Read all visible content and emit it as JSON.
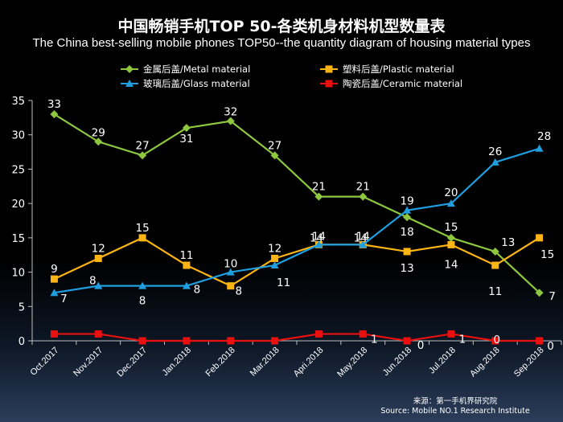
{
  "header": {
    "title": "中国畅销手机TOP 50-各类机身材料机型数量表",
    "subtitle": "The China best-selling mobile phones TOP50--the quantity diagram of housing material types"
  },
  "source": {
    "line1": "来源：第一手机界研究院",
    "line2": "Source: Mobile NO.1 Research Institute"
  },
  "chart_data": {
    "type": "line",
    "title": "中国畅销手机TOP 50-各类机身材料机型数量表",
    "subtitle": "The China best-selling mobile phones TOP50--the quantity diagram of housing material types",
    "categories": [
      "Oct.2017",
      "Nov.2017",
      "Dec.2017",
      "Jan.2018",
      "Feb.2018",
      "Mar.2018",
      "Apri.2018",
      "May.2018",
      "Jun.2018",
      "Jul.2018",
      "Aug.2018",
      "Sep.2018"
    ],
    "ylim": [
      0,
      35
    ],
    "yticks": [
      0,
      5,
      10,
      15,
      20,
      25,
      30,
      35
    ],
    "grid": false,
    "legend_position": "top",
    "series": [
      {
        "name": "金属后盖/Metal material",
        "color": "#8dc63f",
        "marker": "diamond",
        "values": [
          33,
          29,
          27,
          31,
          32,
          27,
          21,
          21,
          18,
          15,
          13,
          7
        ],
        "labels": [
          "33",
          "29",
          "27",
          "31",
          "32",
          "27",
          "21",
          "21",
          "18",
          "15",
          "13",
          "7"
        ]
      },
      {
        "name": "塑料后盖/Plastic material",
        "color": "#fdb515",
        "marker": "square",
        "values": [
          9,
          12,
          15,
          11,
          8,
          12,
          14,
          14,
          13,
          14,
          11,
          15
        ],
        "labels": [
          "9",
          "12",
          "15",
          "11",
          "8",
          "12",
          "14",
          "14",
          "13",
          "14",
          "11",
          "15"
        ]
      },
      {
        "name": "玻璃后盖/Glass material",
        "color": "#1f9fe0",
        "marker": "triangle",
        "values": [
          7,
          8,
          8,
          8,
          10,
          11,
          14,
          14,
          19,
          20,
          26,
          28
        ],
        "labels": [
          "7",
          "8",
          "8",
          "8",
          "10",
          "11",
          "14",
          "14",
          "19",
          "20",
          "26",
          "28"
        ]
      },
      {
        "name": "陶瓷后盖/Ceramic material",
        "color": "#e8110f",
        "marker": "square",
        "values": [
          1,
          1,
          0,
          0,
          0,
          0,
          1,
          1,
          0,
          1,
          0,
          0
        ],
        "labels": [
          "",
          "",
          "",
          "",
          "",
          "",
          "",
          "1",
          "0",
          "1",
          "0",
          "0"
        ]
      }
    ]
  }
}
